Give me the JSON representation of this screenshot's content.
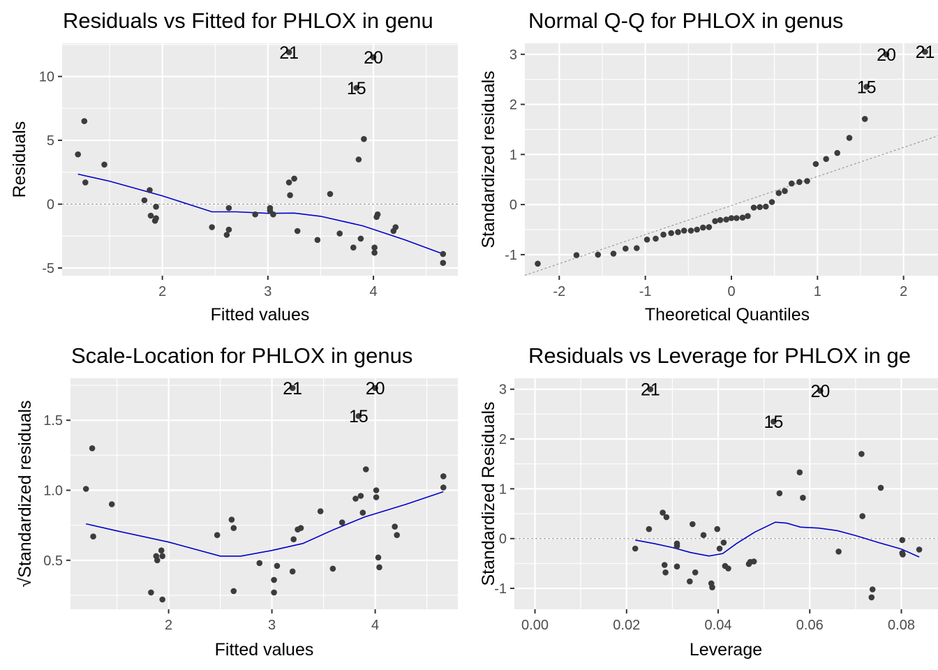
{
  "chart_data": [
    {
      "id": "rvf",
      "type": "scatter",
      "title": "Residuals vs Fitted for PHLOX in genu",
      "xlabel": "Fitted values",
      "ylabel": "Residuals",
      "xlim": [
        1.05,
        4.8
      ],
      "ylim": [
        -5.6,
        12.6
      ],
      "xticks": [
        2,
        3,
        4
      ],
      "xtick_labels": [
        "2",
        "3",
        "4"
      ],
      "yticks": [
        -5,
        0,
        5,
        10
      ],
      "ytick_labels": [
        "-5",
        "0",
        "5",
        "10"
      ],
      "reference_line": {
        "y": 0
      },
      "grid": true,
      "points": [
        [
          1.2,
          3.9
        ],
        [
          1.26,
          6.5
        ],
        [
          1.27,
          1.7
        ],
        [
          1.45,
          3.1
        ],
        [
          1.83,
          0.3
        ],
        [
          1.88,
          1.1
        ],
        [
          1.89,
          -0.9
        ],
        [
          1.93,
          -1.3
        ],
        [
          1.94,
          -1.1
        ],
        [
          1.94,
          -0.2
        ],
        [
          2.47,
          -1.8
        ],
        [
          2.61,
          -2.4
        ],
        [
          2.63,
          -2.0
        ],
        [
          2.63,
          -0.3
        ],
        [
          2.88,
          -0.8
        ],
        [
          3.02,
          -0.5
        ],
        [
          3.02,
          -0.3
        ],
        [
          3.05,
          -0.8
        ],
        [
          3.2,
          1.7
        ],
        [
          3.21,
          0.7
        ],
        [
          3.25,
          2.0
        ],
        [
          3.28,
          -2.1
        ],
        [
          3.47,
          -2.8
        ],
        [
          3.59,
          0.8
        ],
        [
          3.68,
          -2.3
        ],
        [
          3.81,
          -3.4
        ],
        [
          3.86,
          3.5
        ],
        [
          3.88,
          -2.7
        ],
        [
          3.91,
          5.1
        ],
        [
          4.01,
          -3.4
        ],
        [
          4.01,
          -3.8
        ],
        [
          4.03,
          -1.0
        ],
        [
          4.04,
          -0.8
        ],
        [
          4.19,
          -2.1
        ],
        [
          4.21,
          -1.8
        ],
        [
          4.66,
          -3.9
        ],
        [
          4.66,
          -4.6
        ],
        [
          3.2,
          11.9
        ],
        [
          4.0,
          11.5
        ],
        [
          3.84,
          9.1
        ]
      ],
      "labels": [
        {
          "text": "21",
          "x": 3.2,
          "y": 11.9
        },
        {
          "text": "20",
          "x": 4.0,
          "y": 11.5
        },
        {
          "text": "15",
          "x": 3.84,
          "y": 9.1
        }
      ],
      "smooth": [
        [
          1.2,
          2.35
        ],
        [
          1.5,
          1.8
        ],
        [
          2.0,
          0.65
        ],
        [
          2.47,
          -0.6
        ],
        [
          2.7,
          -0.6
        ],
        [
          3.0,
          -0.72
        ],
        [
          3.25,
          -0.7
        ],
        [
          3.5,
          -0.95
        ],
        [
          3.9,
          -1.7
        ],
        [
          4.3,
          -2.8
        ],
        [
          4.66,
          -3.9
        ]
      ]
    },
    {
      "id": "qq",
      "type": "scatter",
      "title": "Normal Q-Q for PHLOX in genus",
      "xlabel": "Theoretical Quantiles",
      "ylabel": "Standardized residuals",
      "xlim": [
        -2.4,
        2.4
      ],
      "ylim": [
        -1.42,
        3.22
      ],
      "xticks": [
        -2,
        -1,
        0,
        1,
        2
      ],
      "xtick_labels": [
        "-2",
        "-1",
        "0",
        "1",
        "2"
      ],
      "yticks": [
        -1,
        0,
        1,
        2,
        3
      ],
      "ytick_labels": [
        "-1",
        "0",
        "1",
        "2",
        "3"
      ],
      "reference_line": {
        "slope": 0.58,
        "intercept": -0.02
      },
      "grid": true,
      "points": [
        [
          -2.25,
          -1.18
        ],
        [
          -1.8,
          -1.01
        ],
        [
          -1.55,
          -1.0
        ],
        [
          -1.37,
          -0.98
        ],
        [
          -1.23,
          -0.88
        ],
        [
          -1.1,
          -0.87
        ],
        [
          -0.98,
          -0.7
        ],
        [
          -0.88,
          -0.68
        ],
        [
          -0.79,
          -0.6
        ],
        [
          -0.7,
          -0.57
        ],
        [
          -0.62,
          -0.55
        ],
        [
          -0.55,
          -0.52
        ],
        [
          -0.47,
          -0.52
        ],
        [
          -0.4,
          -0.5
        ],
        [
          -0.33,
          -0.46
        ],
        [
          -0.26,
          -0.45
        ],
        [
          -0.19,
          -0.33
        ],
        [
          -0.13,
          -0.31
        ],
        [
          -0.06,
          -0.3
        ],
        [
          0.0,
          -0.27
        ],
        [
          0.06,
          -0.27
        ],
        [
          0.13,
          -0.26
        ],
        [
          0.19,
          -0.23
        ],
        [
          0.26,
          -0.06
        ],
        [
          0.33,
          -0.05
        ],
        [
          0.4,
          -0.04
        ],
        [
          0.47,
          0.05
        ],
        [
          0.55,
          0.23
        ],
        [
          0.62,
          0.27
        ],
        [
          0.7,
          0.42
        ],
        [
          0.79,
          0.45
        ],
        [
          0.88,
          0.47
        ],
        [
          0.98,
          0.81
        ],
        [
          1.1,
          0.91
        ],
        [
          1.23,
          1.03
        ],
        [
          1.37,
          1.33
        ],
        [
          1.55,
          1.71
        ],
        [
          1.57,
          2.35
        ],
        [
          1.8,
          3.0
        ],
        [
          2.25,
          3.05
        ]
      ],
      "labels": [
        {
          "text": "20",
          "x": 1.8,
          "y": 3.0
        },
        {
          "text": "21",
          "x": 2.25,
          "y": 3.05
        },
        {
          "text": "15",
          "x": 1.57,
          "y": 2.35
        }
      ],
      "smooth": []
    },
    {
      "id": "sl",
      "type": "scatter",
      "title": "Scale-Location for PHLOX in genus",
      "xlabel": "Fitted values",
      "ylabel": "√Standardized residuals",
      "xlim": [
        1.05,
        4.8
      ],
      "ylim": [
        0.15,
        1.8
      ],
      "xticks": [
        2,
        3,
        4
      ],
      "xtick_labels": [
        "2",
        "3",
        "4"
      ],
      "yticks": [
        0.5,
        1.0,
        1.5
      ],
      "ytick_labels": [
        "0.5",
        "1.0",
        "1.5"
      ],
      "reference_line": null,
      "grid": true,
      "points": [
        [
          1.2,
          1.01
        ],
        [
          1.26,
          1.3
        ],
        [
          1.27,
          0.67
        ],
        [
          1.45,
          0.9
        ],
        [
          1.83,
          0.27
        ],
        [
          1.88,
          0.53
        ],
        [
          1.89,
          0.5
        ],
        [
          1.93,
          0.57
        ],
        [
          1.94,
          0.53
        ],
        [
          1.94,
          0.22
        ],
        [
          2.47,
          0.68
        ],
        [
          2.61,
          0.79
        ],
        [
          2.63,
          0.73
        ],
        [
          2.63,
          0.28
        ],
        [
          2.88,
          0.48
        ],
        [
          3.02,
          0.36
        ],
        [
          3.02,
          0.27
        ],
        [
          3.05,
          0.46
        ],
        [
          3.2,
          0.42
        ],
        [
          3.21,
          0.65
        ],
        [
          3.25,
          0.72
        ],
        [
          3.28,
          0.73
        ],
        [
          3.47,
          0.85
        ],
        [
          3.59,
          0.44
        ],
        [
          3.68,
          0.77
        ],
        [
          3.81,
          0.94
        ],
        [
          3.86,
          0.96
        ],
        [
          3.88,
          0.84
        ],
        [
          3.91,
          1.15
        ],
        [
          4.01,
          1.0
        ],
        [
          4.01,
          0.95
        ],
        [
          4.03,
          0.52
        ],
        [
          4.04,
          0.45
        ],
        [
          4.19,
          0.74
        ],
        [
          4.21,
          0.68
        ],
        [
          4.66,
          1.1
        ],
        [
          4.66,
          1.02
        ],
        [
          3.2,
          1.73
        ],
        [
          4.0,
          1.73
        ],
        [
          3.84,
          1.53
        ]
      ],
      "labels": [
        {
          "text": "21",
          "x": 3.2,
          "y": 1.73
        },
        {
          "text": "20",
          "x": 4.0,
          "y": 1.73
        },
        {
          "text": "15",
          "x": 3.84,
          "y": 1.53
        }
      ],
      "smooth": [
        [
          1.2,
          0.76
        ],
        [
          1.5,
          0.71
        ],
        [
          2.0,
          0.63
        ],
        [
          2.5,
          0.53
        ],
        [
          2.7,
          0.53
        ],
        [
          3.0,
          0.57
        ],
        [
          3.3,
          0.62
        ],
        [
          3.6,
          0.72
        ],
        [
          3.9,
          0.81
        ],
        [
          4.3,
          0.9
        ],
        [
          4.66,
          0.99
        ]
      ]
    },
    {
      "id": "rvl",
      "type": "scatter",
      "title": "Residuals vs Leverage for PHLOX in ge",
      "xlabel": "Leverage",
      "ylabel": "Standardized Residuals",
      "xlim": [
        -0.0045,
        0.088
      ],
      "ylim": [
        -1.42,
        3.22
      ],
      "xticks": [
        0.0,
        0.02,
        0.04,
        0.06,
        0.08
      ],
      "xtick_labels": [
        "0.00",
        "0.02",
        "0.04",
        "0.06",
        "0.08"
      ],
      "yticks": [
        -1,
        0,
        1,
        2,
        3
      ],
      "ytick_labels": [
        "-1",
        "0",
        "1",
        "2",
        "3"
      ],
      "reference_line": {
        "y": 0
      },
      "grid": true,
      "points": [
        [
          0.0219,
          -0.2
        ],
        [
          0.0249,
          0.19
        ],
        [
          0.0279,
          0.52
        ],
        [
          0.0283,
          -0.53
        ],
        [
          0.0285,
          -0.68
        ],
        [
          0.0287,
          0.43
        ],
        [
          0.031,
          -0.1
        ],
        [
          0.031,
          -0.15
        ],
        [
          0.031,
          -0.56
        ],
        [
          0.0338,
          -0.86
        ],
        [
          0.0344,
          0.29
        ],
        [
          0.035,
          -0.68
        ],
        [
          0.0368,
          0.07
        ],
        [
          0.0385,
          -0.9
        ],
        [
          0.0387,
          -0.98
        ],
        [
          0.0398,
          0.19
        ],
        [
          0.0403,
          -0.2
        ],
        [
          0.0412,
          -0.08
        ],
        [
          0.0415,
          -0.55
        ],
        [
          0.0422,
          -0.6
        ],
        [
          0.0467,
          -0.51
        ],
        [
          0.047,
          -0.47
        ],
        [
          0.0478,
          -0.46
        ],
        [
          0.0534,
          0.91
        ],
        [
          0.0578,
          1.33
        ],
        [
          0.0585,
          0.82
        ],
        [
          0.0663,
          -0.26
        ],
        [
          0.0713,
          1.7
        ],
        [
          0.0715,
          0.45
        ],
        [
          0.0735,
          -1.18
        ],
        [
          0.0737,
          -1.02
        ],
        [
          0.0755,
          1.02
        ],
        [
          0.0802,
          -0.03
        ],
        [
          0.0802,
          -0.29
        ],
        [
          0.0803,
          -0.32
        ],
        [
          0.0839,
          -0.22
        ],
        [
          0.0252,
          3.0
        ],
        [
          0.0623,
          2.97
        ],
        [
          0.0521,
          2.35
        ]
      ],
      "labels": [
        {
          "text": "21",
          "x": 0.0252,
          "y": 3.0
        },
        {
          "text": "20",
          "x": 0.0623,
          "y": 2.97
        },
        {
          "text": "15",
          "x": 0.0521,
          "y": 2.35
        }
      ],
      "smooth": [
        [
          0.0219,
          -0.03
        ],
        [
          0.026,
          -0.1
        ],
        [
          0.03,
          -0.18
        ],
        [
          0.034,
          -0.28
        ],
        [
          0.038,
          -0.35
        ],
        [
          0.041,
          -0.3
        ],
        [
          0.044,
          -0.1
        ],
        [
          0.048,
          0.13
        ],
        [
          0.0525,
          0.33
        ],
        [
          0.055,
          0.31
        ],
        [
          0.058,
          0.23
        ],
        [
          0.062,
          0.21
        ],
        [
          0.066,
          0.16
        ],
        [
          0.07,
          0.06
        ],
        [
          0.075,
          -0.08
        ],
        [
          0.08,
          -0.21
        ],
        [
          0.0839,
          -0.37
        ]
      ]
    }
  ]
}
